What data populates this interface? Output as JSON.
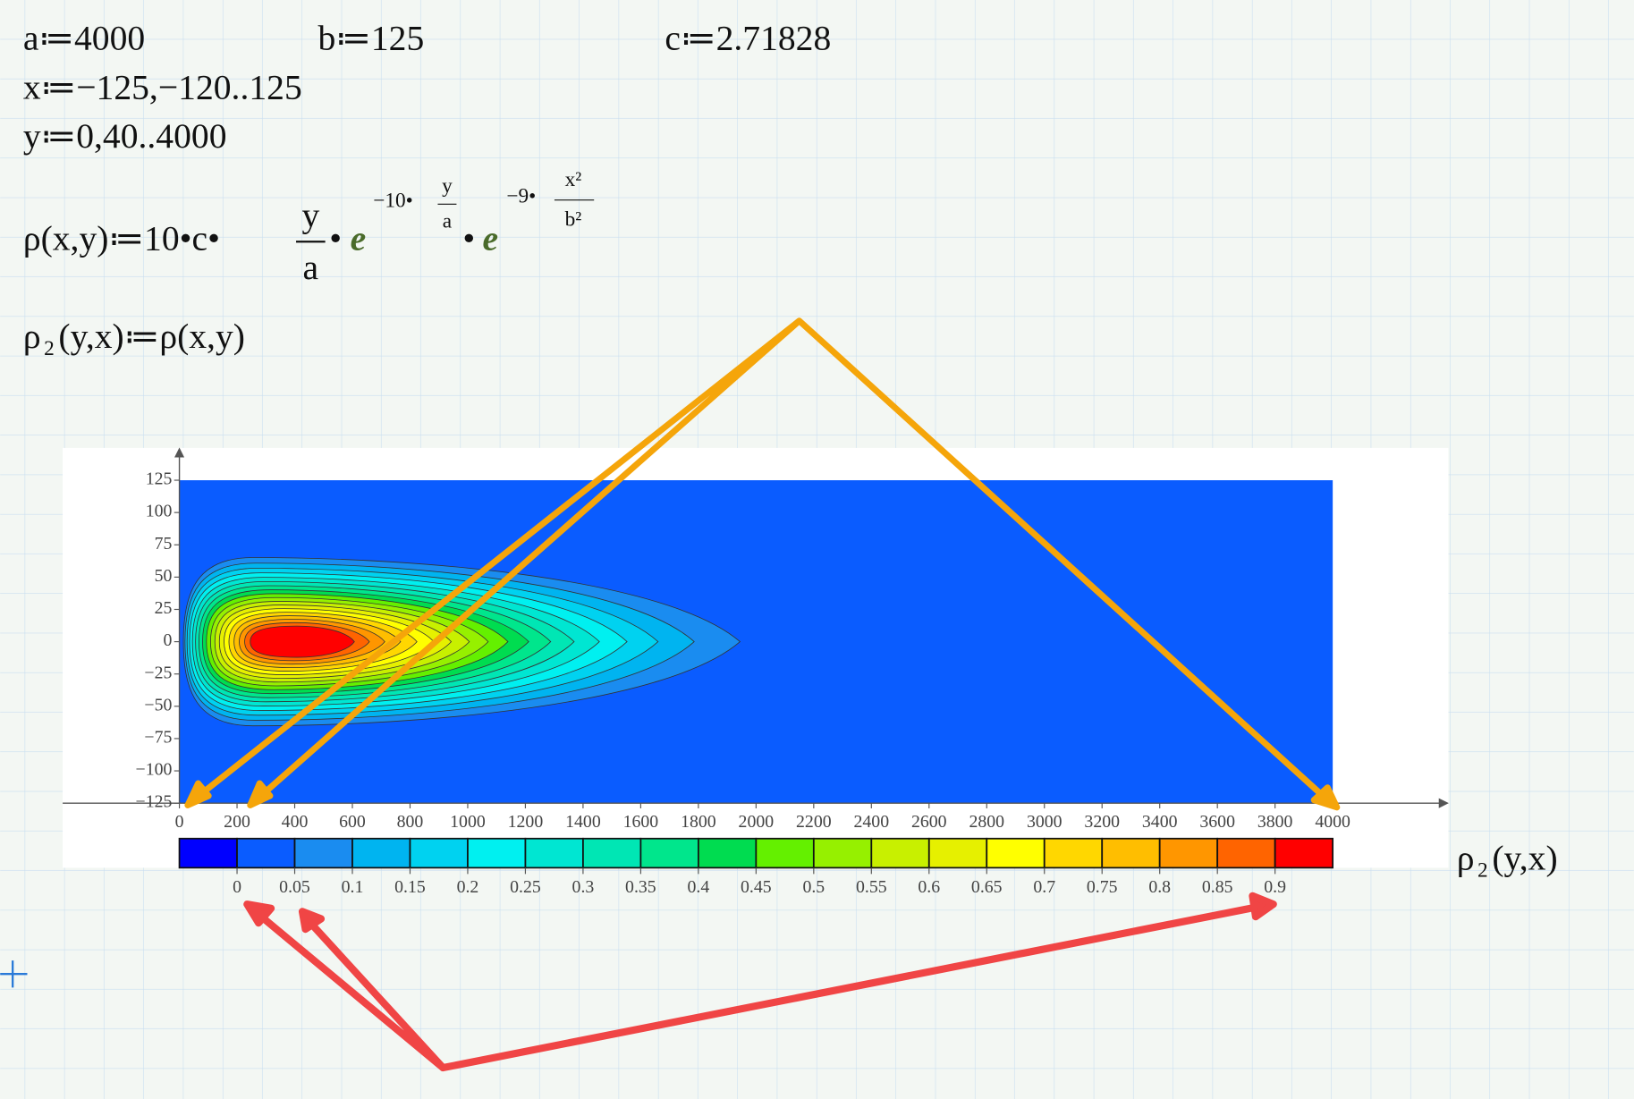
{
  "worksheet": {
    "definitions": [
      "a≔4000",
      "b≔125",
      "c≔2.71828",
      "x≔−125,−120..125",
      "y≔0,40..4000"
    ],
    "rho": {
      "lhs": "ρ(x,y)≔10•c•",
      "frac_num": "y",
      "frac_den": "a",
      "dot1": "•",
      "e1": "e",
      "exp1_coef": "−10•",
      "exp1_num": "y",
      "exp1_den": "a",
      "dot2": "•",
      "e2": "e",
      "exp2_coef": "−9•",
      "exp2_num": "x²",
      "exp2_den": "b²"
    },
    "rho2": {
      "symbol": "ρ",
      "sub": "2",
      "rest": "(y,x)≔ρ(x,y)"
    }
  },
  "chart_data": {
    "type": "contour",
    "xlim": [
      0,
      4000
    ],
    "xticks": [
      0,
      200,
      400,
      600,
      800,
      1000,
      1200,
      1400,
      1600,
      1800,
      2000,
      2200,
      2400,
      2600,
      2800,
      3000,
      3200,
      3400,
      3600,
      3800,
      4000
    ],
    "ylim": [
      -125,
      125
    ],
    "yticks": [
      125,
      100,
      75,
      50,
      25,
      0,
      {
        "value": -25,
        "label": "−25"
      },
      {
        "value": -50,
        "label": "−50"
      },
      {
        "value": -75,
        "label": "−75"
      },
      {
        "value": -100,
        "label": "−100"
      },
      {
        "value": -125,
        "label": "−125"
      }
    ],
    "colorbar_lim": [
      -0.05,
      0.95
    ],
    "colorbar_ticks": [
      0,
      0.05,
      0.1,
      0.15,
      0.2,
      0.25,
      0.3,
      0.35,
      0.4,
      0.45,
      0.5,
      0.55,
      0.6,
      0.65,
      0.7,
      0.75,
      0.8,
      0.85,
      0.9
    ],
    "colors": [
      "#0000ff",
      "#0a5cff",
      "#1a8cf0",
      "#00b4f0",
      "#00d2f0",
      "#00f0f0",
      "#00e6d2",
      "#00e6b4",
      "#00e68c",
      "#00dc50",
      "#64f000",
      "#96f000",
      "#c8f000",
      "#e6f000",
      "#ffff00",
      "#ffd700",
      "#ffbe00",
      "#ff9600",
      "#ff6400",
      "#ff0000"
    ],
    "axis_label": {
      "symbol": "ρ",
      "sub": "2",
      "rest": "(y,x)"
    }
  }
}
